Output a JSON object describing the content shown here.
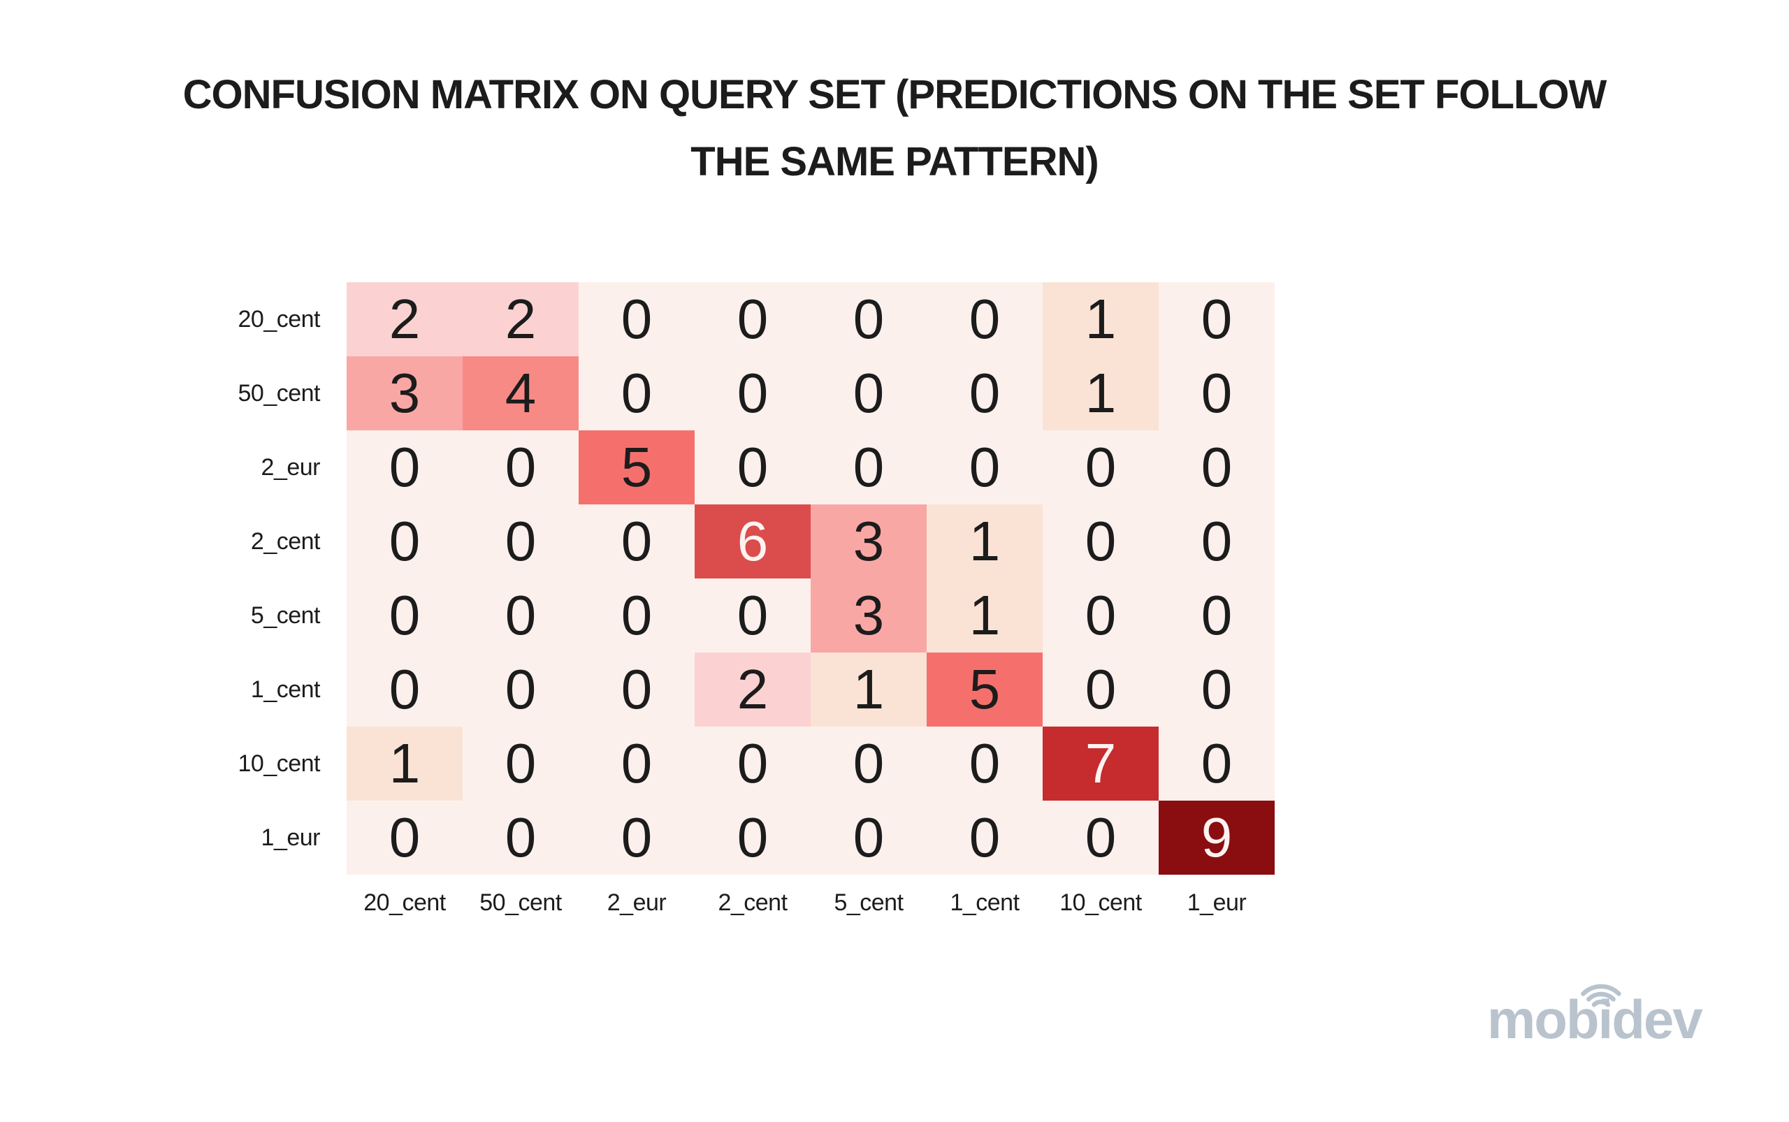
{
  "title": {
    "line1": "CONFUSION MATRIX ON QUERY SET (PREDICTIONS ON THE SET FOLLOW",
    "line2": "THE SAME PATTERN)"
  },
  "chart_data": {
    "type": "heatmap",
    "title": "CONFUSION MATRIX ON QUERY SET (PREDICTIONS ON THE SET FOLLOW THE SAME PATTERN)",
    "y_labels": [
      "20_cent",
      "50_cent",
      "2_eur",
      "2_cent",
      "5_cent",
      "1_cent",
      "10_cent",
      "1_eur"
    ],
    "x_labels": [
      "20_cent",
      "50_cent",
      "2_eur",
      "2_cent",
      "5_cent",
      "1_cent",
      "10_cent",
      "1_eur"
    ],
    "matrix": [
      [
        2,
        2,
        0,
        0,
        0,
        0,
        1,
        0
      ],
      [
        3,
        4,
        0,
        0,
        0,
        0,
        1,
        0
      ],
      [
        0,
        0,
        5,
        0,
        0,
        0,
        0,
        0
      ],
      [
        0,
        0,
        0,
        6,
        3,
        1,
        0,
        0
      ],
      [
        0,
        0,
        0,
        0,
        3,
        1,
        0,
        0
      ],
      [
        0,
        0,
        0,
        2,
        1,
        5,
        0,
        0
      ],
      [
        1,
        0,
        0,
        0,
        0,
        0,
        7,
        0
      ],
      [
        0,
        0,
        0,
        0,
        0,
        0,
        0,
        9
      ]
    ],
    "value_range": [
      0,
      9
    ],
    "grid": false,
    "legend": "none",
    "value_colors": {
      "0": "#fcf0ed",
      "1": "#fae3d5",
      "2": "#fbd2d1",
      "3": "#f9a7a5",
      "4": "#f88a86",
      "5": "#f5706d",
      "6": "#db4d4d",
      "7": "#c62b2e",
      "8": "#a51d20",
      "9": "#8a0d10"
    },
    "light_text_threshold": 6,
    "text_color_dark": "#1c1c1c",
    "text_color_light": "#fdf3f0"
  },
  "branding": {
    "logo_text": "mobidev",
    "logo_color": "#b9c3cd"
  }
}
